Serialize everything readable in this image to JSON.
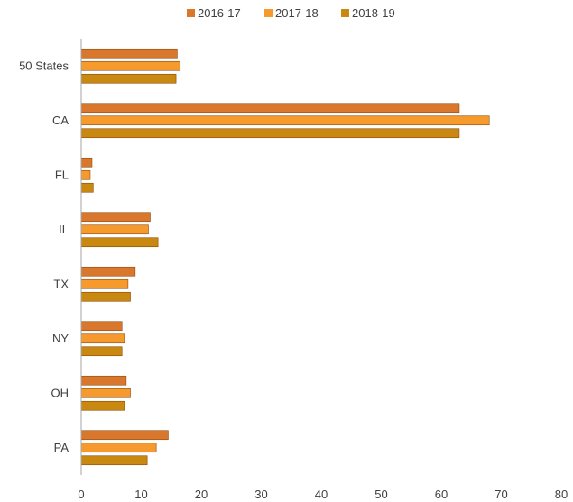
{
  "chart_data": {
    "type": "bar",
    "orientation": "horizontal",
    "title": "",
    "xlabel": "",
    "ylabel": "",
    "categories": [
      "50 States",
      "CA",
      "FL",
      "IL",
      "TX",
      "NY",
      "OH",
      "PA"
    ],
    "series": [
      {
        "name": "2016-17",
        "color": "#d9782d",
        "values": [
          16,
          63,
          1.8,
          11.5,
          9,
          6.8,
          7.5,
          14.5
        ]
      },
      {
        "name": "2017-18",
        "color": "#f79a2e",
        "values": [
          16.5,
          68,
          1.5,
          11.2,
          7.8,
          7.2,
          8.2,
          12.5
        ]
      },
      {
        "name": "2018-19",
        "color": "#c9880f",
        "values": [
          15.8,
          63,
          2,
          12.8,
          8.2,
          6.8,
          7.2,
          11
        ]
      }
    ],
    "xlim": [
      0,
      80
    ],
    "xticks": [
      0,
      10,
      20,
      30,
      40,
      50,
      60,
      70,
      80
    ],
    "grid": false,
    "legend_position": "top"
  }
}
